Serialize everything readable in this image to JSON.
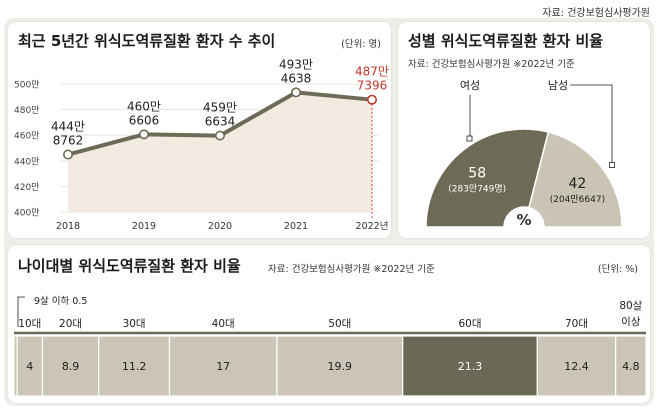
{
  "source_top": "자료: 건강보험심사평가원",
  "line_panel": {
    "title": "최근 5년간 위식도역류질환 환자 수 추이",
    "unit": "(단위: 명)"
  },
  "pie_panel": {
    "title": "성별 위식도역류질환 환자 비율",
    "note": "자료: 건강보험심사평가원    ※2022년 기준",
    "center_symbol": "%"
  },
  "bar_panel": {
    "title": "나이대별 위식도역류질환 환자 비율",
    "note": "자료: 건강보험심사평가원    ※2022년 기준",
    "unit": "(단위: %)",
    "tiny_note": "9살 이하 0.5"
  },
  "chart_data": [
    {
      "type": "line",
      "title": "최근 5년간 위식도역류질환 환자 수 추이",
      "x": [
        "2018",
        "2019",
        "2020",
        "2021",
        "2022년"
      ],
      "y_ticks": [
        "400만",
        "420만",
        "440만",
        "460만",
        "480만",
        "500만"
      ],
      "ylim": [
        4000000,
        5000000
      ],
      "values": [
        4448762,
        4606606,
        4596634,
        4934638,
        4877396
      ],
      "data_labels": [
        [
          "444만",
          "8762"
        ],
        [
          "460만",
          "6606"
        ],
        [
          "459만",
          "6634"
        ],
        [
          "493만",
          "4638"
        ],
        [
          "487만",
          "7396"
        ]
      ],
      "grid": true,
      "colors": {
        "line": "#6d6b57",
        "area": "#f1ebe2",
        "highlight": "#c0392b"
      }
    },
    {
      "type": "pie",
      "title": "성별 위식도역류질환 환자 비율",
      "slices": [
        {
          "label": "여성",
          "value": 58,
          "value_label": "58",
          "count_label": "(283만749명)",
          "color": "#6d6a55"
        },
        {
          "label": "남성",
          "value": 42,
          "value_label": "42",
          "count_label": "(204만6647)",
          "color": "#c9c4b4"
        }
      ]
    },
    {
      "type": "bar",
      "title": "나이대별 위식도역류질환 환자 비율",
      "categories": [
        "9살 이하",
        "10대",
        "20대",
        "30대",
        "40대",
        "50대",
        "60대",
        "70대",
        "80살 이상"
      ],
      "category_labels": [
        "",
        "10대",
        "20대",
        "30대",
        "40대",
        "50대",
        "60대",
        "70대",
        "80살|이상"
      ],
      "values": [
        0.5,
        4,
        8.9,
        11.2,
        17,
        19.9,
        21.3,
        12.4,
        4.8
      ],
      "value_labels": [
        "",
        "4",
        "8.9",
        "11.2",
        "17",
        "19.9",
        "21.3",
        "12.4",
        "4.8"
      ],
      "colors": {
        "normal": "#cac5b6",
        "highlight": "#6b6955",
        "axis": "#6b6955"
      }
    }
  ]
}
